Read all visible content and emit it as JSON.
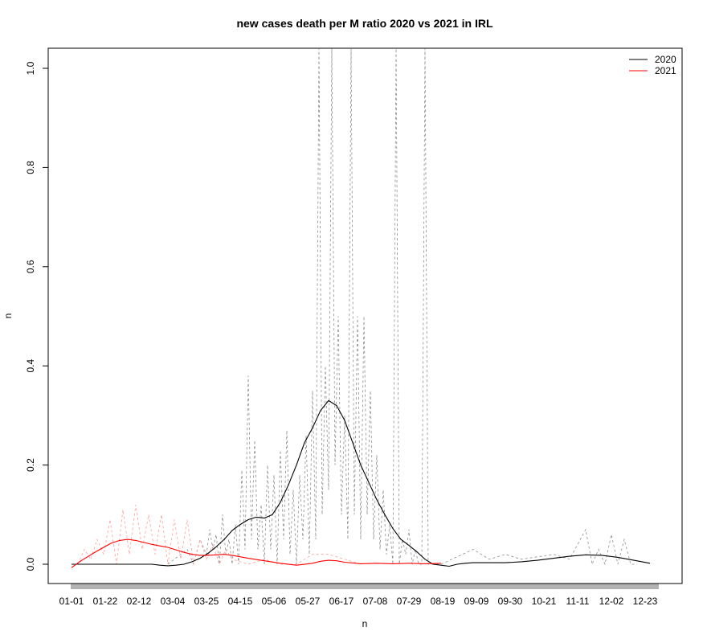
{
  "chart_data": {
    "type": "line",
    "title": "new cases death per M ratio 2020 vs 2021 in IRL",
    "xlabel": "n",
    "ylabel": "n",
    "ylim": [
      -0.04,
      1.04
    ],
    "y_ticks": [
      0.0,
      0.2,
      0.4,
      0.6,
      0.8,
      1.0
    ],
    "y_tick_labels": [
      "0.0",
      "0.2",
      "0.4",
      "0.6",
      "0.8",
      "1.0"
    ],
    "x_ticks_days": [
      0,
      21,
      42,
      63,
      84,
      105,
      126,
      147,
      168,
      189,
      210,
      231,
      252,
      273,
      294,
      315,
      336,
      357
    ],
    "x_tick_labels": [
      "01-01",
      "01-22",
      "02-12",
      "03-04",
      "03-25",
      "04-15",
      "05-06",
      "05-27",
      "06-17",
      "07-08",
      "07-29",
      "08-19",
      "09-09",
      "09-30",
      "10-21",
      "11-11",
      "12-02",
      "12-23"
    ],
    "legend": {
      "position": "top-right",
      "entries": [
        {
          "label": "2020",
          "color": "#000000"
        },
        {
          "label": "2021",
          "color": "#ff0000"
        }
      ]
    },
    "grid": false,
    "series": [
      {
        "name": "2020",
        "color": "#000000",
        "smooth_x": [
          0,
          10,
          20,
          30,
          40,
          50,
          55,
          60,
          65,
          70,
          75,
          80,
          85,
          90,
          95,
          100,
          105,
          110,
          115,
          120,
          125,
          130,
          135,
          140,
          145,
          150,
          155,
          160,
          165,
          170,
          175,
          180,
          185,
          190,
          195,
          200,
          205,
          210,
          215,
          220,
          225,
          230,
          235,
          240,
          245,
          250,
          260,
          270,
          280,
          290,
          300,
          310,
          320,
          330,
          340,
          350,
          360
        ],
        "smooth_y": [
          0.0,
          0.0,
          0.0,
          0.0,
          0.0,
          0.0,
          -0.002,
          -0.003,
          -0.002,
          0.0,
          0.005,
          0.012,
          0.022,
          0.035,
          0.05,
          0.068,
          0.08,
          0.09,
          0.095,
          0.093,
          0.1,
          0.125,
          0.16,
          0.2,
          0.245,
          0.275,
          0.31,
          0.33,
          0.32,
          0.29,
          0.245,
          0.2,
          0.165,
          0.13,
          0.1,
          0.072,
          0.05,
          0.038,
          0.025,
          0.01,
          0.0,
          -0.002,
          -0.004,
          0.0,
          0.002,
          0.003,
          0.003,
          0.003,
          0.005,
          0.008,
          0.012,
          0.016,
          0.019,
          0.018,
          0.014,
          0.008,
          0.002
        ],
        "raw_days": [
          60,
          72,
          76,
          80,
          84,
          86,
          88,
          90,
          92,
          94,
          96,
          98,
          100,
          102,
          104,
          106,
          108,
          110,
          112,
          114,
          116,
          118,
          120,
          122,
          124,
          126,
          128,
          130,
          132,
          134,
          136,
          138,
          140,
          142,
          144,
          146,
          148,
          150,
          152,
          154,
          156,
          158,
          160,
          162,
          164,
          166,
          168,
          170,
          172,
          174,
          176,
          178,
          180,
          182,
          184,
          186,
          188,
          190,
          192,
          194,
          196,
          198,
          200,
          202,
          204,
          206,
          208,
          210,
          212,
          214,
          216,
          218,
          220,
          222,
          224,
          226,
          228,
          230,
          250,
          260,
          270,
          280,
          300,
          310,
          320,
          324,
          328,
          332,
          336,
          340,
          344,
          348,
          352
        ],
        "raw_values": [
          0.0,
          0.03,
          0.0,
          0.05,
          0.02,
          0.07,
          0.03,
          0.06,
          0.0,
          0.1,
          0.02,
          0.05,
          0.0,
          0.08,
          0.0,
          0.19,
          0.03,
          0.38,
          0.05,
          0.25,
          0.03,
          0.12,
          0.0,
          0.2,
          0.03,
          0.18,
          0.0,
          0.23,
          0.05,
          0.27,
          0.02,
          0.15,
          0.0,
          0.18,
          0.05,
          0.26,
          0.02,
          0.35,
          0.05,
          1.04,
          0.1,
          0.4,
          0.15,
          1.04,
          0.2,
          0.5,
          0.1,
          0.3,
          0.05,
          1.04,
          0.1,
          0.5,
          0.05,
          0.5,
          0.1,
          0.35,
          0.05,
          0.22,
          0.03,
          0.15,
          0.02,
          0.08,
          0.0,
          1.04,
          0.0,
          0.05,
          0.02,
          0.07,
          0.0,
          0.03,
          0.0,
          0.0,
          1.04,
          0.0,
          0.0,
          0.0,
          0.0,
          0.0,
          0.03,
          0.01,
          0.02,
          0.01,
          0.02,
          0.01,
          0.07,
          0.0,
          0.03,
          0.0,
          0.06,
          0.0,
          0.05,
          0.0,
          0.0
        ]
      },
      {
        "name": "2021",
        "color": "#ff0000",
        "smooth_x": [
          0,
          5,
          10,
          15,
          20,
          25,
          30,
          35,
          40,
          45,
          50,
          55,
          60,
          65,
          70,
          75,
          80,
          85,
          90,
          95,
          100,
          110,
          120,
          130,
          140,
          150,
          155,
          160,
          165,
          170,
          180,
          190,
          200,
          210,
          220,
          230
        ],
        "smooth_y": [
          -0.007,
          0.005,
          0.015,
          0.025,
          0.034,
          0.043,
          0.048,
          0.05,
          0.048,
          0.044,
          0.04,
          0.037,
          0.034,
          0.029,
          0.024,
          0.02,
          0.018,
          0.018,
          0.019,
          0.02,
          0.018,
          0.012,
          0.007,
          0.002,
          -0.002,
          0.002,
          0.006,
          0.008,
          0.007,
          0.004,
          0.001,
          0.002,
          0.001,
          0.002,
          0.001,
          0.002
        ],
        "raw_days": [
          4,
          8,
          12,
          16,
          20,
          24,
          28,
          32,
          36,
          40,
          44,
          48,
          52,
          56,
          60,
          64,
          68,
          72,
          76,
          80,
          84,
          88,
          92,
          96,
          100,
          110,
          120,
          130,
          140,
          150,
          160,
          170,
          180
        ],
        "raw_values": [
          0.0,
          0.03,
          0.01,
          0.05,
          0.02,
          0.09,
          0.0,
          0.11,
          0.02,
          0.12,
          0.03,
          0.1,
          0.02,
          0.1,
          0.0,
          0.09,
          0.01,
          0.09,
          0.0,
          0.05,
          0.01,
          0.04,
          0.0,
          0.03,
          0.01,
          0.0,
          0.01,
          0.0,
          0.0,
          0.02,
          0.02,
          0.01,
          0.0
        ]
      }
    ]
  }
}
